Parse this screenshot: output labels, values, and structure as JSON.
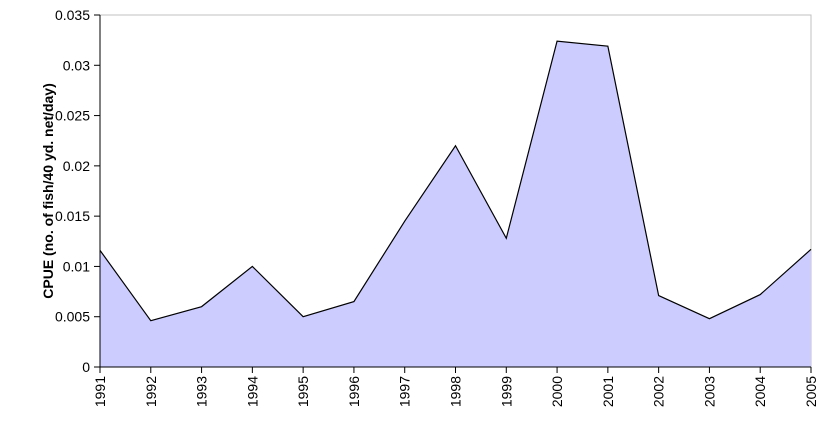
{
  "chart_data": {
    "type": "area",
    "title": "",
    "xlabel": "",
    "ylabel": "CPUE (no. of fish/40 yd. net/day)",
    "categories": [
      "1991",
      "1992",
      "1993",
      "1994",
      "1995",
      "1996",
      "1997",
      "1998",
      "1999",
      "2000",
      "2001",
      "2002",
      "2003",
      "2004",
      "2005"
    ],
    "values": [
      0.0116,
      0.0046,
      0.006,
      0.01,
      0.005,
      0.0065,
      0.0145,
      0.022,
      0.0128,
      0.0324,
      0.0319,
      0.0071,
      0.0048,
      0.0072,
      0.0117
    ],
    "ylim": [
      0,
      0.035
    ],
    "yticks": [
      "0",
      "0.005",
      "0.01",
      "0.015",
      "0.02",
      "0.025",
      "0.03",
      "0.035"
    ],
    "grid": false,
    "legend": "none",
    "fill_color": "#ccccff",
    "line_color": "#000000"
  }
}
